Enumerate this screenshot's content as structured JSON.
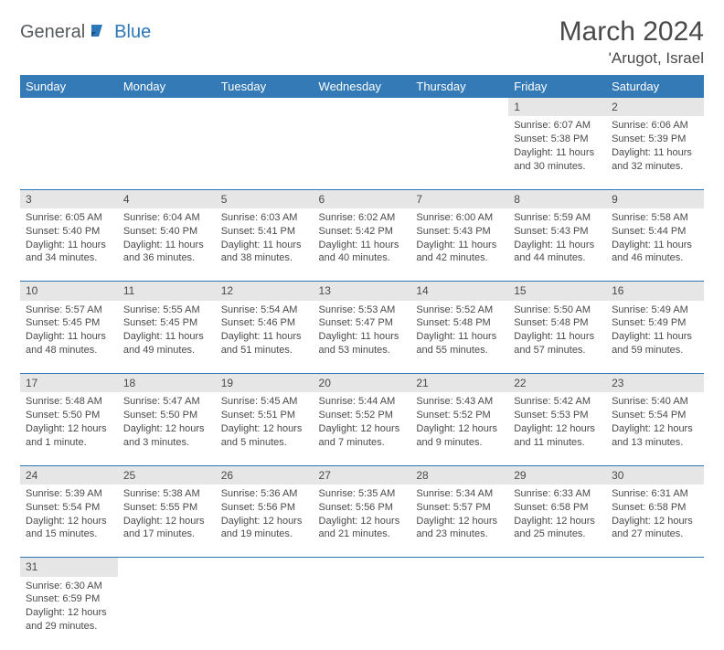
{
  "logo": {
    "part1": "General",
    "part2": "Blue"
  },
  "title": "March 2024",
  "location": "'Arugot, Israel",
  "dayHeaders": [
    "Sunday",
    "Monday",
    "Tuesday",
    "Wednesday",
    "Thursday",
    "Friday",
    "Saturday"
  ],
  "colors": {
    "headerBg": "#337ab7",
    "headerText": "#ffffff",
    "dayNumBg": "#e6e6e6",
    "borderColor": "#2c77b8",
    "logoAccent": "#2c77b8",
    "logoGray": "#55595c",
    "bodyText": "#4a4a4a"
  },
  "weeks": [
    [
      null,
      null,
      null,
      null,
      null,
      {
        "n": "1",
        "sr": "Sunrise: 6:07 AM",
        "ss": "Sunset: 5:38 PM",
        "d1": "Daylight: 11 hours",
        "d2": "and 30 minutes."
      },
      {
        "n": "2",
        "sr": "Sunrise: 6:06 AM",
        "ss": "Sunset: 5:39 PM",
        "d1": "Daylight: 11 hours",
        "d2": "and 32 minutes."
      }
    ],
    [
      {
        "n": "3",
        "sr": "Sunrise: 6:05 AM",
        "ss": "Sunset: 5:40 PM",
        "d1": "Daylight: 11 hours",
        "d2": "and 34 minutes."
      },
      {
        "n": "4",
        "sr": "Sunrise: 6:04 AM",
        "ss": "Sunset: 5:40 PM",
        "d1": "Daylight: 11 hours",
        "d2": "and 36 minutes."
      },
      {
        "n": "5",
        "sr": "Sunrise: 6:03 AM",
        "ss": "Sunset: 5:41 PM",
        "d1": "Daylight: 11 hours",
        "d2": "and 38 minutes."
      },
      {
        "n": "6",
        "sr": "Sunrise: 6:02 AM",
        "ss": "Sunset: 5:42 PM",
        "d1": "Daylight: 11 hours",
        "d2": "and 40 minutes."
      },
      {
        "n": "7",
        "sr": "Sunrise: 6:00 AM",
        "ss": "Sunset: 5:43 PM",
        "d1": "Daylight: 11 hours",
        "d2": "and 42 minutes."
      },
      {
        "n": "8",
        "sr": "Sunrise: 5:59 AM",
        "ss": "Sunset: 5:43 PM",
        "d1": "Daylight: 11 hours",
        "d2": "and 44 minutes."
      },
      {
        "n": "9",
        "sr": "Sunrise: 5:58 AM",
        "ss": "Sunset: 5:44 PM",
        "d1": "Daylight: 11 hours",
        "d2": "and 46 minutes."
      }
    ],
    [
      {
        "n": "10",
        "sr": "Sunrise: 5:57 AM",
        "ss": "Sunset: 5:45 PM",
        "d1": "Daylight: 11 hours",
        "d2": "and 48 minutes."
      },
      {
        "n": "11",
        "sr": "Sunrise: 5:55 AM",
        "ss": "Sunset: 5:45 PM",
        "d1": "Daylight: 11 hours",
        "d2": "and 49 minutes."
      },
      {
        "n": "12",
        "sr": "Sunrise: 5:54 AM",
        "ss": "Sunset: 5:46 PM",
        "d1": "Daylight: 11 hours",
        "d2": "and 51 minutes."
      },
      {
        "n": "13",
        "sr": "Sunrise: 5:53 AM",
        "ss": "Sunset: 5:47 PM",
        "d1": "Daylight: 11 hours",
        "d2": "and 53 minutes."
      },
      {
        "n": "14",
        "sr": "Sunrise: 5:52 AM",
        "ss": "Sunset: 5:48 PM",
        "d1": "Daylight: 11 hours",
        "d2": "and 55 minutes."
      },
      {
        "n": "15",
        "sr": "Sunrise: 5:50 AM",
        "ss": "Sunset: 5:48 PM",
        "d1": "Daylight: 11 hours",
        "d2": "and 57 minutes."
      },
      {
        "n": "16",
        "sr": "Sunrise: 5:49 AM",
        "ss": "Sunset: 5:49 PM",
        "d1": "Daylight: 11 hours",
        "d2": "and 59 minutes."
      }
    ],
    [
      {
        "n": "17",
        "sr": "Sunrise: 5:48 AM",
        "ss": "Sunset: 5:50 PM",
        "d1": "Daylight: 12 hours",
        "d2": "and 1 minute."
      },
      {
        "n": "18",
        "sr": "Sunrise: 5:47 AM",
        "ss": "Sunset: 5:50 PM",
        "d1": "Daylight: 12 hours",
        "d2": "and 3 minutes."
      },
      {
        "n": "19",
        "sr": "Sunrise: 5:45 AM",
        "ss": "Sunset: 5:51 PM",
        "d1": "Daylight: 12 hours",
        "d2": "and 5 minutes."
      },
      {
        "n": "20",
        "sr": "Sunrise: 5:44 AM",
        "ss": "Sunset: 5:52 PM",
        "d1": "Daylight: 12 hours",
        "d2": "and 7 minutes."
      },
      {
        "n": "21",
        "sr": "Sunrise: 5:43 AM",
        "ss": "Sunset: 5:52 PM",
        "d1": "Daylight: 12 hours",
        "d2": "and 9 minutes."
      },
      {
        "n": "22",
        "sr": "Sunrise: 5:42 AM",
        "ss": "Sunset: 5:53 PM",
        "d1": "Daylight: 12 hours",
        "d2": "and 11 minutes."
      },
      {
        "n": "23",
        "sr": "Sunrise: 5:40 AM",
        "ss": "Sunset: 5:54 PM",
        "d1": "Daylight: 12 hours",
        "d2": "and 13 minutes."
      }
    ],
    [
      {
        "n": "24",
        "sr": "Sunrise: 5:39 AM",
        "ss": "Sunset: 5:54 PM",
        "d1": "Daylight: 12 hours",
        "d2": "and 15 minutes."
      },
      {
        "n": "25",
        "sr": "Sunrise: 5:38 AM",
        "ss": "Sunset: 5:55 PM",
        "d1": "Daylight: 12 hours",
        "d2": "and 17 minutes."
      },
      {
        "n": "26",
        "sr": "Sunrise: 5:36 AM",
        "ss": "Sunset: 5:56 PM",
        "d1": "Daylight: 12 hours",
        "d2": "and 19 minutes."
      },
      {
        "n": "27",
        "sr": "Sunrise: 5:35 AM",
        "ss": "Sunset: 5:56 PM",
        "d1": "Daylight: 12 hours",
        "d2": "and 21 minutes."
      },
      {
        "n": "28",
        "sr": "Sunrise: 5:34 AM",
        "ss": "Sunset: 5:57 PM",
        "d1": "Daylight: 12 hours",
        "d2": "and 23 minutes."
      },
      {
        "n": "29",
        "sr": "Sunrise: 6:33 AM",
        "ss": "Sunset: 6:58 PM",
        "d1": "Daylight: 12 hours",
        "d2": "and 25 minutes."
      },
      {
        "n": "30",
        "sr": "Sunrise: 6:31 AM",
        "ss": "Sunset: 6:58 PM",
        "d1": "Daylight: 12 hours",
        "d2": "and 27 minutes."
      }
    ],
    [
      {
        "n": "31",
        "sr": "Sunrise: 6:30 AM",
        "ss": "Sunset: 6:59 PM",
        "d1": "Daylight: 12 hours",
        "d2": "and 29 minutes."
      },
      null,
      null,
      null,
      null,
      null,
      null
    ]
  ]
}
